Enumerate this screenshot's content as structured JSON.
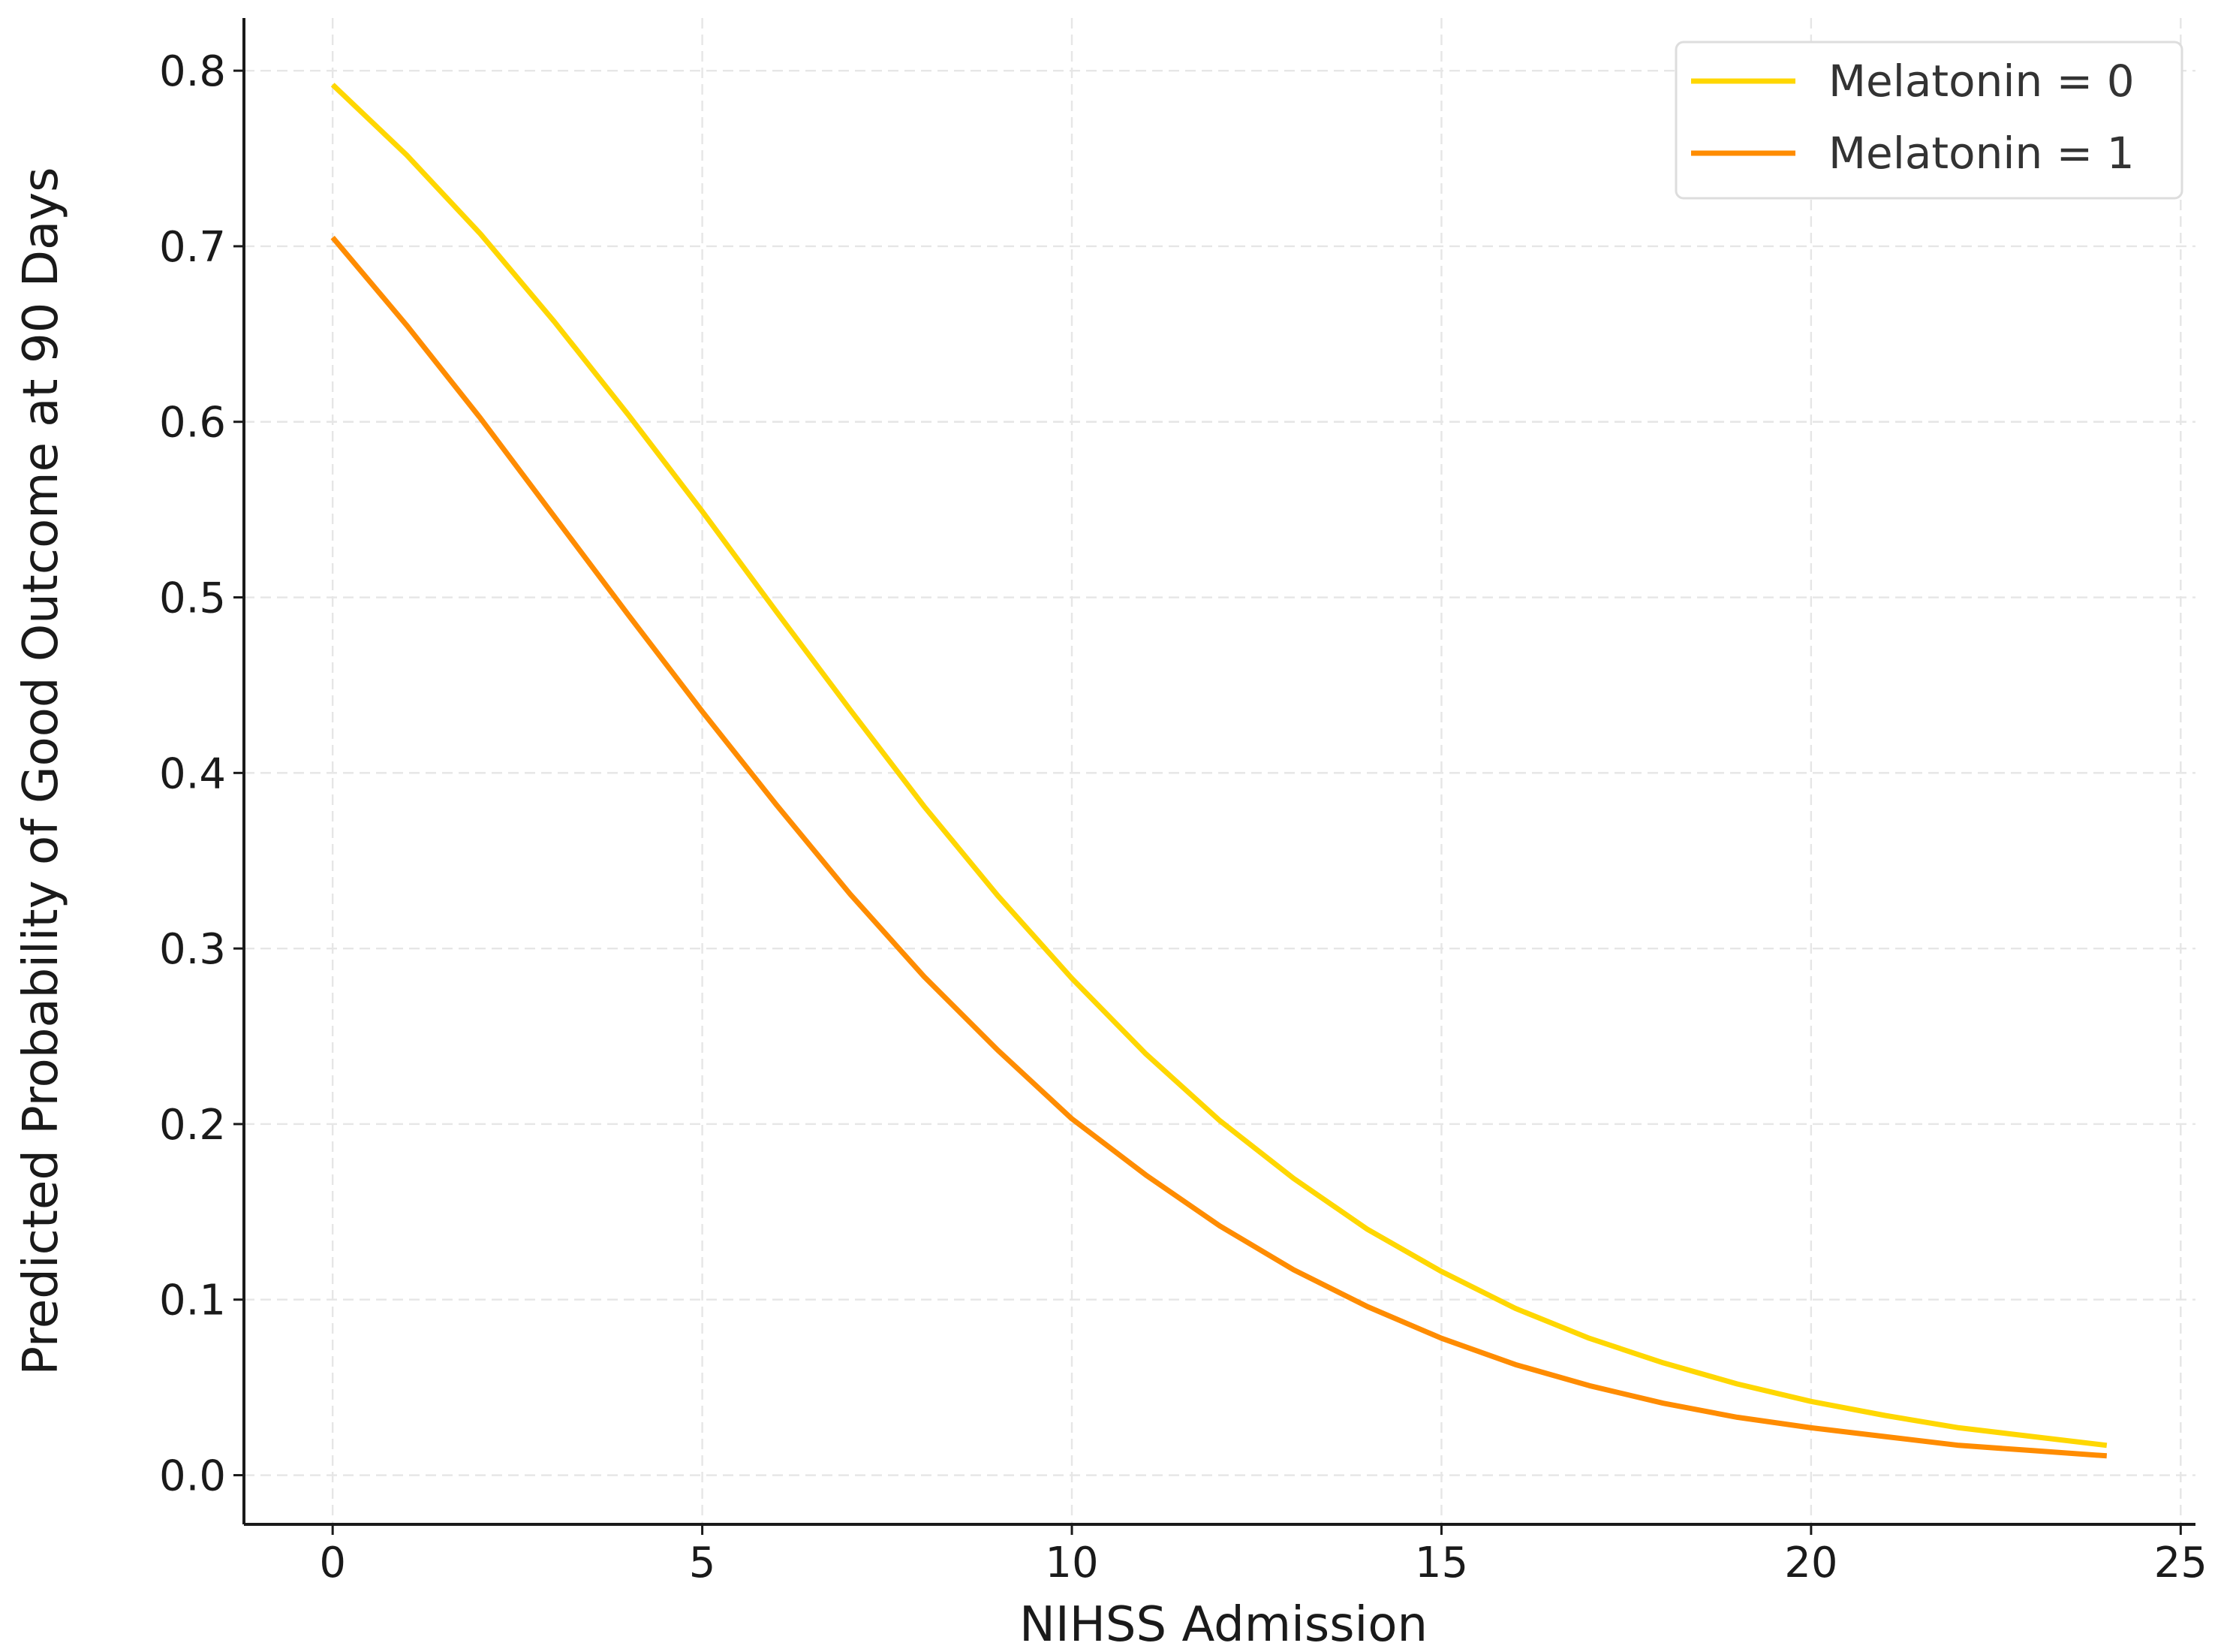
{
  "chart_data": {
    "type": "line",
    "title": "",
    "xlabel": "NIHSS Admission",
    "ylabel": "Predicted Probability of Good Outcome at 90 Days",
    "xlim": [
      -1.2,
      25.2
    ],
    "ylim": [
      -0.028,
      0.83
    ],
    "xticks": [
      0,
      5,
      10,
      15,
      20,
      25
    ],
    "yticks": [
      0.0,
      0.1,
      0.2,
      0.3,
      0.4,
      0.5,
      0.6,
      0.7,
      0.8
    ],
    "xtick_labels": [
      "0",
      "5",
      "10",
      "15",
      "20",
      "25"
    ],
    "ytick_labels": [
      "0.0",
      "0.1",
      "0.2",
      "0.3",
      "0.4",
      "0.5",
      "0.6",
      "0.7",
      "0.8"
    ],
    "grid": true,
    "legend_position": "top-right",
    "x": [
      0,
      1,
      2,
      3,
      4,
      5,
      6,
      7,
      8,
      9,
      10,
      11,
      12,
      13,
      14,
      15,
      16,
      17,
      18,
      19,
      20,
      21,
      22,
      23,
      24
    ],
    "series": [
      {
        "name": "Melatonin = 0",
        "color": "#FFD700",
        "values": [
          0.792,
          0.752,
          0.707,
          0.657,
          0.604,
          0.549,
          0.492,
          0.436,
          0.381,
          0.33,
          0.283,
          0.24,
          0.202,
          0.169,
          0.14,
          0.116,
          0.095,
          0.078,
          0.064,
          0.052,
          0.042,
          0.034,
          0.027,
          0.022,
          0.017
        ]
      },
      {
        "name": "Melatonin = 1",
        "color": "#FF8C00",
        "values": [
          0.705,
          0.655,
          0.602,
          0.546,
          0.49,
          0.435,
          0.382,
          0.331,
          0.284,
          0.242,
          0.203,
          0.171,
          0.142,
          0.117,
          0.096,
          0.078,
          0.063,
          0.051,
          0.041,
          0.033,
          0.027,
          0.022,
          0.017,
          0.014,
          0.011
        ]
      }
    ]
  }
}
